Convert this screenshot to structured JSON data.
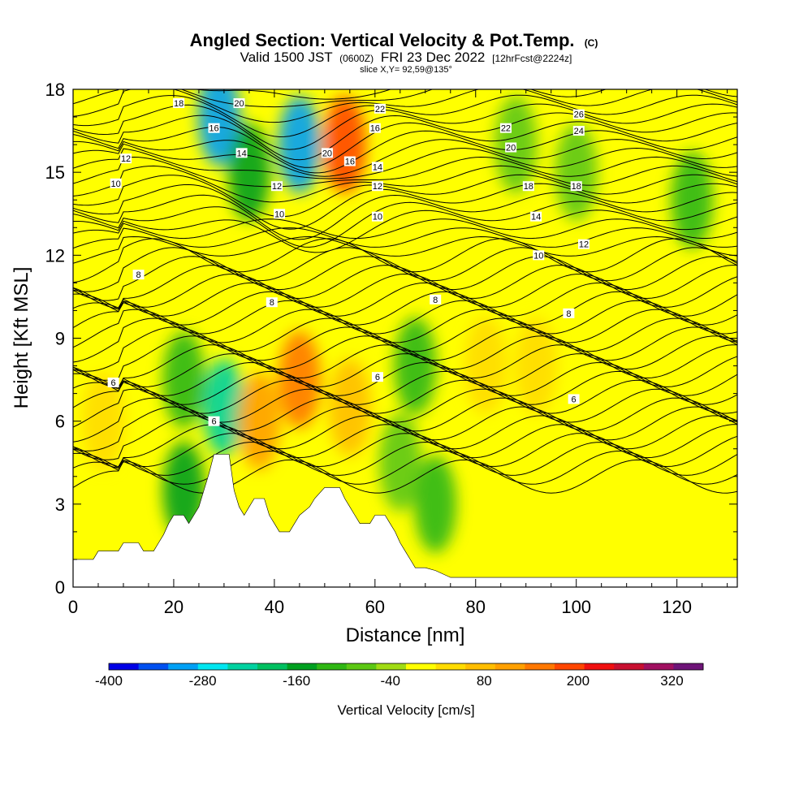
{
  "header": {
    "title": "Angled Section: Vertical Velocity & Pot.Temp.",
    "title_suffix": "(C)",
    "valid_prefix": "Valid 1500 JST",
    "valid_utc": "(0600Z)",
    "valid_date": "FRI 23 Dec 2022",
    "forecast": "[12hrFcst@2224z]",
    "slice": "slice X,Y= 92,59@135°"
  },
  "chart_data": {
    "type": "heatmap",
    "xlabel": "Distance [nm]",
    "ylabel": "Height [Kft MSL]",
    "xlim": [
      0,
      132
    ],
    "ylim": [
      0,
      18
    ],
    "x_ticks": [
      0,
      20,
      40,
      60,
      80,
      100,
      120
    ],
    "y_ticks": [
      0,
      3,
      6,
      9,
      12,
      15,
      18
    ],
    "colorbar": {
      "title": "Vertical Velocity [cm/s]",
      "min": -400,
      "max": 360,
      "step": 40,
      "labels": [
        -400,
        -280,
        -160,
        -40,
        80,
        200,
        320
      ],
      "colors": [
        "#0000e6",
        "#0050f0",
        "#00a0f5",
        "#00e6f0",
        "#00d2a0",
        "#00c060",
        "#00a020",
        "#2fb714",
        "#5cc814",
        "#a0dc14",
        "#ffff00",
        "#ffdc00",
        "#ffbe00",
        "#ffa000",
        "#ff7800",
        "#ff4600",
        "#f01010",
        "#c81030",
        "#a01060",
        "#6e1478"
      ]
    },
    "terrain_kft": [
      [
        0,
        1.0
      ],
      [
        4,
        1.0
      ],
      [
        5,
        1.3
      ],
      [
        9,
        1.3
      ],
      [
        10,
        1.6
      ],
      [
        13,
        1.6
      ],
      [
        14,
        1.3
      ],
      [
        16,
        1.3
      ],
      [
        17,
        1.6
      ],
      [
        18,
        1.9
      ],
      [
        19,
        2.3
      ],
      [
        20,
        2.6
      ],
      [
        22,
        2.6
      ],
      [
        23,
        2.3
      ],
      [
        24,
        2.6
      ],
      [
        25,
        2.9
      ],
      [
        26,
        3.5
      ],
      [
        27,
        4.1
      ],
      [
        28,
        4.8
      ],
      [
        31,
        4.8
      ],
      [
        32,
        3.5
      ],
      [
        33,
        2.9
      ],
      [
        34,
        2.6
      ],
      [
        35,
        2.9
      ],
      [
        36,
        3.2
      ],
      [
        38,
        3.2
      ],
      [
        39,
        2.6
      ],
      [
        40,
        2.3
      ],
      [
        41,
        2.0
      ],
      [
        43,
        2.0
      ],
      [
        44,
        2.3
      ],
      [
        45,
        2.6
      ],
      [
        47,
        2.9
      ],
      [
        48,
        3.2
      ],
      [
        50,
        3.6
      ],
      [
        53,
        3.6
      ],
      [
        54,
        3.2
      ],
      [
        55,
        2.9
      ],
      [
        56,
        2.6
      ],
      [
        57,
        2.3
      ],
      [
        59,
        2.3
      ],
      [
        60,
        2.6
      ],
      [
        62,
        2.6
      ],
      [
        63,
        2.3
      ],
      [
        64,
        2.0
      ],
      [
        65,
        1.6
      ],
      [
        66,
        1.3
      ],
      [
        67,
        1.0
      ],
      [
        68,
        0.7
      ],
      [
        70,
        0.7
      ],
      [
        72,
        0.6
      ],
      [
        75,
        0.35
      ],
      [
        132,
        0.35
      ]
    ],
    "vertical_velocity_features_cms": [
      {
        "x": 22,
        "y": 3.5,
        "value": -150
      },
      {
        "x": 22,
        "y": 7.5,
        "value": -110
      },
      {
        "x": 30,
        "y": 6.5,
        "value": -230
      },
      {
        "x": 29,
        "y": 17,
        "value": -300
      },
      {
        "x": 35,
        "y": 15,
        "value": -140
      },
      {
        "x": 45,
        "y": 16,
        "value": -290
      },
      {
        "x": 54,
        "y": 16,
        "value": 230
      },
      {
        "x": 45,
        "y": 7.5,
        "value": 170
      },
      {
        "x": 37,
        "y": 6,
        "value": 120
      },
      {
        "x": 55,
        "y": 6.5,
        "value": 110
      },
      {
        "x": 68,
        "y": 8,
        "value": -120
      },
      {
        "x": 65,
        "y": 4.5,
        "value": -80
      },
      {
        "x": 72,
        "y": 3,
        "value": -90
      },
      {
        "x": 88,
        "y": 16,
        "value": -70
      },
      {
        "x": 100,
        "y": 15,
        "value": -60
      },
      {
        "x": 123,
        "y": 14,
        "value": -100
      },
      {
        "x": 82,
        "y": 8,
        "value": 60
      },
      {
        "x": 92,
        "y": 8,
        "value": 70
      },
      {
        "x": 6,
        "y": 6,
        "value": 50
      }
    ],
    "theta_contour_labels": [
      {
        "value": "18",
        "x": 21,
        "y": 17.5
      },
      {
        "value": "20",
        "x": 33,
        "y": 17.5
      },
      {
        "value": "22",
        "x": 61,
        "y": 17.3
      },
      {
        "value": "16",
        "x": 28,
        "y": 16.6
      },
      {
        "value": "14",
        "x": 33.5,
        "y": 15.7
      },
      {
        "value": "20",
        "x": 50.5,
        "y": 15.7
      },
      {
        "value": "16",
        "x": 55,
        "y": 15.4
      },
      {
        "value": "16",
        "x": 60,
        "y": 16.6
      },
      {
        "value": "14",
        "x": 60.5,
        "y": 15.2
      },
      {
        "value": "12",
        "x": 60.5,
        "y": 14.5
      },
      {
        "value": "10",
        "x": 60.5,
        "y": 13.4
      },
      {
        "value": "12",
        "x": 10.5,
        "y": 15.5
      },
      {
        "value": "10",
        "x": 8.5,
        "y": 14.6
      },
      {
        "value": "12",
        "x": 40.5,
        "y": 14.5
      },
      {
        "value": "10",
        "x": 41,
        "y": 13.5
      },
      {
        "value": "22",
        "x": 86,
        "y": 16.6
      },
      {
        "value": "20",
        "x": 87,
        "y": 15.9
      },
      {
        "value": "26",
        "x": 100.5,
        "y": 17.1
      },
      {
        "value": "24",
        "x": 100.5,
        "y": 16.5
      },
      {
        "value": "18",
        "x": 90.5,
        "y": 14.5
      },
      {
        "value": "18",
        "x": 100,
        "y": 14.5
      },
      {
        "value": "14",
        "x": 92,
        "y": 13.4
      },
      {
        "value": "12",
        "x": 101.5,
        "y": 12.4
      },
      {
        "value": "10",
        "x": 92.5,
        "y": 12.0
      },
      {
        "value": "8",
        "x": 13,
        "y": 11.3
      },
      {
        "value": "8",
        "x": 39.5,
        "y": 10.3
      },
      {
        "value": "8",
        "x": 72,
        "y": 10.4
      },
      {
        "value": "8",
        "x": 98.5,
        "y": 9.9
      },
      {
        "value": "6",
        "x": 8,
        "y": 7.4
      },
      {
        "value": "6",
        "x": 28,
        "y": 6.0
      },
      {
        "value": "6",
        "x": 60.5,
        "y": 7.6
      },
      {
        "value": "6",
        "x": 99.5,
        "y": 6.8
      }
    ]
  }
}
